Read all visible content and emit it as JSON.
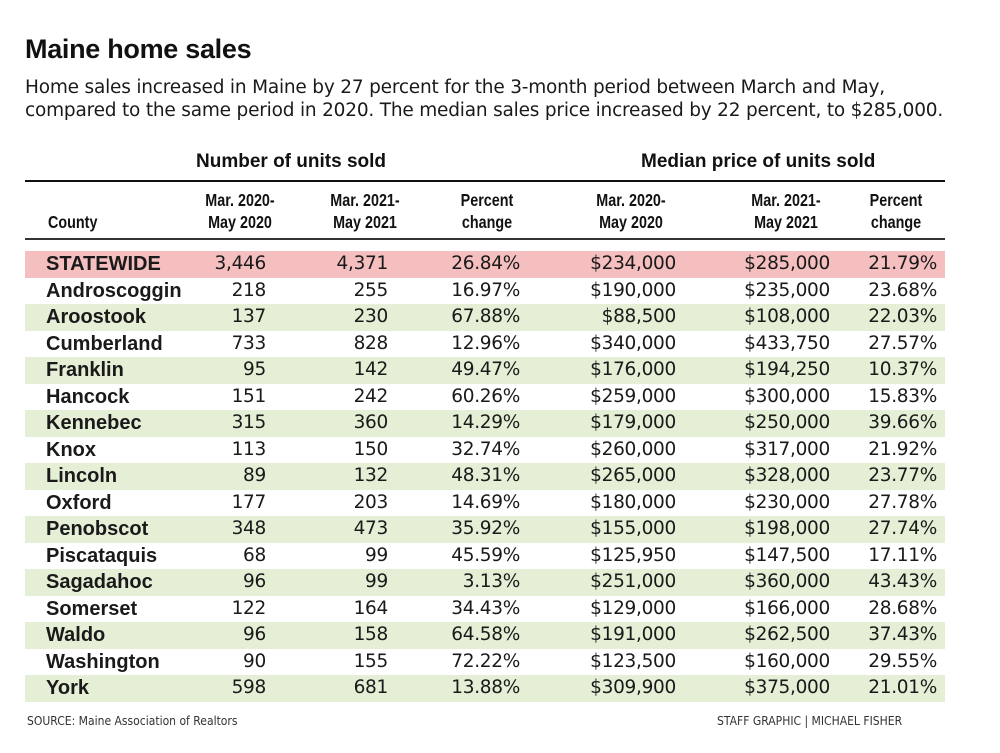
{
  "header": {
    "title": "Maine home sales",
    "subtitle": "Home sales increased in Maine by 27 percent for the 3-month period between March and May, compared to the same period in 2020. The median sales price increased by 22 percent, to $285,000."
  },
  "table": {
    "group_headers": {
      "units": "Number of units sold",
      "price": "Median price of units sold"
    },
    "columns": {
      "county": "County",
      "units_2020": [
        "Mar. 2020-",
        "May 2020"
      ],
      "units_2021": [
        "Mar. 2021-",
        "May 2021"
      ],
      "units_pct": [
        "Percent",
        "change"
      ],
      "price_2020": [
        "Mar. 2020-",
        "May 2020"
      ],
      "price_2021": [
        "Mar. 2021-",
        "May 2021"
      ],
      "price_pct": [
        "Percent",
        "change"
      ]
    },
    "rows": [
      {
        "county": "STATEWIDE",
        "units_2020": "3,446",
        "units_2021": "4,371",
        "units_pct": "26.84%",
        "price_2020": "$234,000",
        "price_2021": "$285,000",
        "price_pct": "21.79%"
      },
      {
        "county": "Androscoggin",
        "units_2020": "218",
        "units_2021": "255",
        "units_pct": "16.97%",
        "price_2020": "$190,000",
        "price_2021": "$235,000",
        "price_pct": "23.68%"
      },
      {
        "county": "Aroostook",
        "units_2020": "137",
        "units_2021": "230",
        "units_pct": "67.88%",
        "price_2020": "$88,500",
        "price_2021": "$108,000",
        "price_pct": "22.03%"
      },
      {
        "county": "Cumberland",
        "units_2020": "733",
        "units_2021": "828",
        "units_pct": "12.96%",
        "price_2020": "$340,000",
        "price_2021": "$433,750",
        "price_pct": "27.57%"
      },
      {
        "county": "Franklin",
        "units_2020": "95",
        "units_2021": "142",
        "units_pct": "49.47%",
        "price_2020": "$176,000",
        "price_2021": "$194,250",
        "price_pct": "10.37%"
      },
      {
        "county": "Hancock",
        "units_2020": "151",
        "units_2021": "242",
        "units_pct": "60.26%",
        "price_2020": "$259,000",
        "price_2021": "$300,000",
        "price_pct": "15.83%"
      },
      {
        "county": "Kennebec",
        "units_2020": "315",
        "units_2021": "360",
        "units_pct": "14.29%",
        "price_2020": "$179,000",
        "price_2021": "$250,000",
        "price_pct": "39.66%"
      },
      {
        "county": "Knox",
        "units_2020": "113",
        "units_2021": "150",
        "units_pct": "32.74%",
        "price_2020": "$260,000",
        "price_2021": "$317,000",
        "price_pct": "21.92%"
      },
      {
        "county": "Lincoln",
        "units_2020": "89",
        "units_2021": "132",
        "units_pct": "48.31%",
        "price_2020": "$265,000",
        "price_2021": "$328,000",
        "price_pct": "23.77%"
      },
      {
        "county": "Oxford",
        "units_2020": "177",
        "units_2021": "203",
        "units_pct": "14.69%",
        "price_2020": "$180,000",
        "price_2021": "$230,000",
        "price_pct": "27.78%"
      },
      {
        "county": "Penobscot",
        "units_2020": "348",
        "units_2021": "473",
        "units_pct": "35.92%",
        "price_2020": "$155,000",
        "price_2021": "$198,000",
        "price_pct": "27.74%"
      },
      {
        "county": "Piscataquis",
        "units_2020": "68",
        "units_2021": "99",
        "units_pct": "45.59%",
        "price_2020": "$125,950",
        "price_2021": "$147,500",
        "price_pct": "17.11%"
      },
      {
        "county": "Sagadahoc",
        "units_2020": "96",
        "units_2021": "99",
        "units_pct": "3.13%",
        "price_2020": "$251,000",
        "price_2021": "$360,000",
        "price_pct": "43.43%"
      },
      {
        "county": "Somerset",
        "units_2020": "122",
        "units_2021": "164",
        "units_pct": "34.43%",
        "price_2020": "$129,000",
        "price_2021": "$166,000",
        "price_pct": "28.68%"
      },
      {
        "county": "Waldo",
        "units_2020": "96",
        "units_2021": "158",
        "units_pct": "64.58%",
        "price_2020": "$191,000",
        "price_2021": "$262,500",
        "price_pct": "37.43%"
      },
      {
        "county": "Washington",
        "units_2020": "90",
        "units_2021": "155",
        "units_pct": "72.22%",
        "price_2020": "$123,500",
        "price_2021": "$160,000",
        "price_pct": "29.55%"
      },
      {
        "county": "York",
        "units_2020": "598",
        "units_2021": "681",
        "units_pct": "13.88%",
        "price_2020": "$309,900",
        "price_2021": "$375,000",
        "price_pct": "21.01%"
      }
    ]
  },
  "colors": {
    "statewide_row": "#f5bfc0",
    "shaded_row": "#e4efd6",
    "plain_row": "#ffffff"
  },
  "footer": {
    "source": "SOURCE: Maine Association of Realtors",
    "credit": "STAFF GRAPHIC | MICHAEL FISHER"
  },
  "chart_data": {
    "type": "table",
    "title": "Maine home sales",
    "subtitle": "Home sales increased in Maine by 27 percent for the 3-month period between March and May, compared to the same period in 2020. The median sales price increased by 22 percent, to $285,000.",
    "column_groups": [
      "Number of units sold",
      "Median price of units sold"
    ],
    "columns": [
      "County",
      "Units Mar. 2020-May 2020",
      "Units Mar. 2021-May 2021",
      "Units percent change",
      "Median price Mar. 2020-May 2020",
      "Median price Mar. 2021-May 2021",
      "Median price percent change"
    ],
    "rows": [
      [
        "STATEWIDE",
        3446,
        4371,
        26.84,
        234000,
        285000,
        21.79
      ],
      [
        "Androscoggin",
        218,
        255,
        16.97,
        190000,
        235000,
        23.68
      ],
      [
        "Aroostook",
        137,
        230,
        67.88,
        88500,
        108000,
        22.03
      ],
      [
        "Cumberland",
        733,
        828,
        12.96,
        340000,
        433750,
        27.57
      ],
      [
        "Franklin",
        95,
        142,
        49.47,
        176000,
        194250,
        10.37
      ],
      [
        "Hancock",
        151,
        242,
        60.26,
        259000,
        300000,
        15.83
      ],
      [
        "Kennebec",
        315,
        360,
        14.29,
        179000,
        250000,
        39.66
      ],
      [
        "Knox",
        113,
        150,
        32.74,
        260000,
        317000,
        21.92
      ],
      [
        "Lincoln",
        89,
        132,
        48.31,
        265000,
        328000,
        23.77
      ],
      [
        "Oxford",
        177,
        203,
        14.69,
        180000,
        230000,
        27.78
      ],
      [
        "Penobscot",
        348,
        473,
        35.92,
        155000,
        198000,
        27.74
      ],
      [
        "Piscataquis",
        68,
        99,
        45.59,
        125950,
        147500,
        17.11
      ],
      [
        "Sagadahoc",
        96,
        99,
        3.13,
        251000,
        360000,
        43.43
      ],
      [
        "Somerset",
        122,
        164,
        34.43,
        129000,
        166000,
        28.68
      ],
      [
        "Waldo",
        96,
        158,
        64.58,
        191000,
        262500,
        37.43
      ],
      [
        "Washington",
        90,
        155,
        72.22,
        123500,
        160000,
        29.55
      ],
      [
        "York",
        598,
        681,
        13.88,
        309900,
        375000,
        21.01
      ]
    ],
    "source": "SOURCE: Maine Association of Realtors",
    "credit": "STAFF GRAPHIC | MICHAEL FISHER"
  }
}
